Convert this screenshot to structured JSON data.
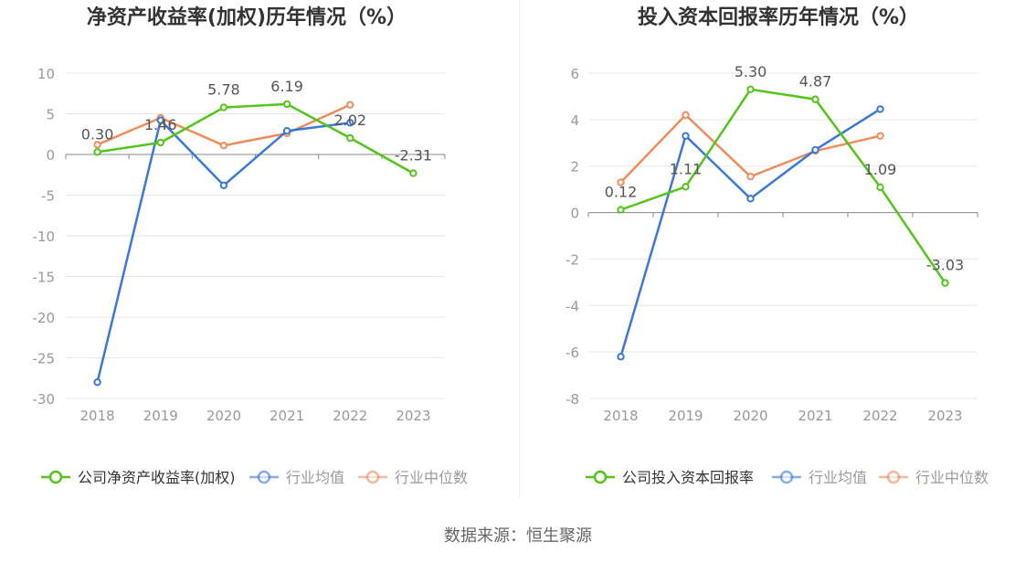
{
  "source": "数据来源：恒生聚源",
  "chart_data": [
    {
      "type": "line",
      "title": "净资产收益率(加权)历年情况（%）",
      "categories": [
        "2018",
        "2019",
        "2020",
        "2021",
        "2022",
        "2023"
      ],
      "ylim": [
        -30,
        10
      ],
      "yticks": [
        10,
        5,
        0,
        -5,
        -10,
        -15,
        -20,
        -25,
        -30
      ],
      "series": [
        {
          "name": "公司净资产收益率(加权)",
          "color": "#52c41a",
          "values": [
            0.3,
            1.46,
            5.78,
            6.19,
            2.02,
            -2.31
          ],
          "labels": [
            "0.30",
            "1.46",
            "5.78",
            "6.19",
            "2.02",
            "-2.31"
          ]
        },
        {
          "name": "行业均值",
          "color": "#3a78d8",
          "values": [
            -28.0,
            4.2,
            -3.8,
            2.9,
            3.9,
            null
          ]
        },
        {
          "name": "行业中位数",
          "color": "#f08c5a",
          "values": [
            1.2,
            4.5,
            1.1,
            2.6,
            6.1,
            null
          ]
        }
      ],
      "legend_position": "bottom"
    },
    {
      "type": "line",
      "title": "投入资本回报率历年情况（%）",
      "categories": [
        "2018",
        "2019",
        "2020",
        "2021",
        "2022",
        "2023"
      ],
      "ylim": [
        -8,
        6
      ],
      "yticks": [
        6,
        4,
        2,
        0,
        -2,
        -4,
        -6,
        -8
      ],
      "series": [
        {
          "name": "公司投入资本回报率",
          "color": "#52c41a",
          "values": [
            0.12,
            1.11,
            5.3,
            4.87,
            1.09,
            -3.03
          ],
          "labels": [
            "0.12",
            "1.11",
            "5.30",
            "4.87",
            "1.09",
            "-3.03"
          ]
        },
        {
          "name": "行业均值",
          "color": "#3a78d8",
          "values": [
            -6.2,
            3.3,
            0.6,
            2.7,
            4.45,
            null
          ]
        },
        {
          "name": "行业中位数",
          "color": "#f08c5a",
          "values": [
            1.3,
            4.2,
            1.55,
            2.65,
            3.3,
            null
          ]
        }
      ],
      "legend_position": "bottom"
    }
  ]
}
